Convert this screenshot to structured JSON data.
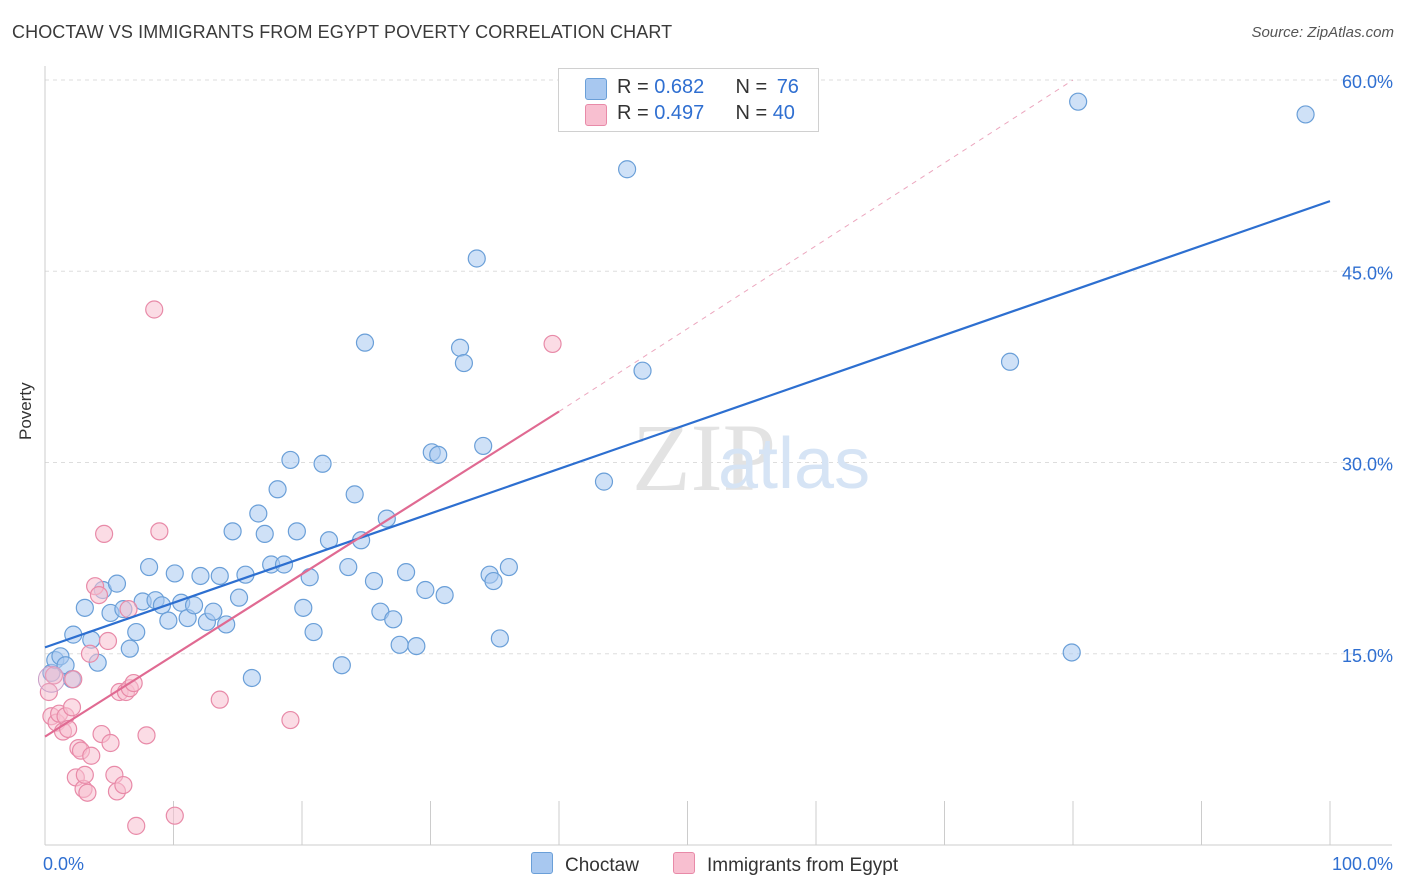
{
  "title": "CHOCTAW VS IMMIGRANTS FROM EGYPT POVERTY CORRELATION CHART",
  "source": "Source: ZipAtlas.com",
  "watermark": {
    "zip": "ZIP",
    "atlas": "atlas"
  },
  "legend": {
    "rows": [
      {
        "r_label": "R = ",
        "r_value": "0.682",
        "n_label": "N = ",
        "n_value": "76",
        "color": "#a8c8f0",
        "border": "#6a9fd8"
      },
      {
        "r_label": "R = ",
        "r_value": "0.497",
        "n_label": "N = ",
        "n_value": "40",
        "color": "#f8bfd0",
        "border": "#e88aa8"
      }
    ]
  },
  "bottom_legend": [
    {
      "label": "Choctaw",
      "color": "#a8c8f0",
      "border": "#6a9fd8"
    },
    {
      "label": "Immigrants from Egypt",
      "color": "#f8bfd0",
      "border": "#e88aa8"
    }
  ],
  "chart_data": {
    "type": "scatter",
    "xlabel": "",
    "ylabel": "Poverty",
    "xlim": [
      0,
      100
    ],
    "ylim": [
      0,
      60
    ],
    "x_tick_labels": [
      {
        "value": 0,
        "label": "0.0%"
      },
      {
        "value": 100,
        "label": "100.0%"
      }
    ],
    "y_tick_labels": [
      {
        "value": 15,
        "label": "15.0%"
      },
      {
        "value": 30,
        "label": "30.0%"
      },
      {
        "value": 45,
        "label": "45.0%"
      },
      {
        "value": 60,
        "label": "60.0%"
      }
    ],
    "grid": "horizontal dashed",
    "series": [
      {
        "name": "Choctaw",
        "color": "#6a9fd8",
        "fill": "#a8c8f0",
        "trend": {
          "x": [
            0,
            100
          ],
          "y": [
            15.5,
            50.5
          ],
          "color": "#2d6fd0"
        },
        "points": [
          [
            0.5,
            13.5
          ],
          [
            0.8,
            14.5
          ],
          [
            1.2,
            14.8
          ],
          [
            1.6,
            14.1
          ],
          [
            2.1,
            13.0
          ],
          [
            2.2,
            16.5
          ],
          [
            3.1,
            18.6
          ],
          [
            3.6,
            16.1
          ],
          [
            4.1,
            14.3
          ],
          [
            4.5,
            20.0
          ],
          [
            5.1,
            18.2
          ],
          [
            5.6,
            20.5
          ],
          [
            6.1,
            18.5
          ],
          [
            6.6,
            15.4
          ],
          [
            7.1,
            16.7
          ],
          [
            7.6,
            19.1
          ],
          [
            8.1,
            21.8
          ],
          [
            8.6,
            19.2
          ],
          [
            9.1,
            18.8
          ],
          [
            9.6,
            17.6
          ],
          [
            10.1,
            21.3
          ],
          [
            10.6,
            19.0
          ],
          [
            11.1,
            17.8
          ],
          [
            11.6,
            18.8
          ],
          [
            12.1,
            21.1
          ],
          [
            12.6,
            17.5
          ],
          [
            13.1,
            18.3
          ],
          [
            13.6,
            21.1
          ],
          [
            14.1,
            17.3
          ],
          [
            14.6,
            24.6
          ],
          [
            15.1,
            19.4
          ],
          [
            15.6,
            21.2
          ],
          [
            16.1,
            13.1
          ],
          [
            16.6,
            26.0
          ],
          [
            17.1,
            24.4
          ],
          [
            17.6,
            22.0
          ],
          [
            18.1,
            27.9
          ],
          [
            18.6,
            22.0
          ],
          [
            19.1,
            30.2
          ],
          [
            19.6,
            24.6
          ],
          [
            20.1,
            18.6
          ],
          [
            20.6,
            21.0
          ],
          [
            20.9,
            16.7
          ],
          [
            21.6,
            29.9
          ],
          [
            22.1,
            23.9
          ],
          [
            23.1,
            14.1
          ],
          [
            23.6,
            21.8
          ],
          [
            24.1,
            27.5
          ],
          [
            24.6,
            23.9
          ],
          [
            24.9,
            39.4
          ],
          [
            25.6,
            20.7
          ],
          [
            26.1,
            18.3
          ],
          [
            26.6,
            25.6
          ],
          [
            27.1,
            17.7
          ],
          [
            27.6,
            15.7
          ],
          [
            28.1,
            21.4
          ],
          [
            28.9,
            15.6
          ],
          [
            29.6,
            20.0
          ],
          [
            30.1,
            30.8
          ],
          [
            30.6,
            30.6
          ],
          [
            31.1,
            19.6
          ],
          [
            32.3,
            39.0
          ],
          [
            32.6,
            37.8
          ],
          [
            33.6,
            46.0
          ],
          [
            34.1,
            31.3
          ],
          [
            34.6,
            21.2
          ],
          [
            34.9,
            20.7
          ],
          [
            35.4,
            16.2
          ],
          [
            36.1,
            21.8
          ],
          [
            43.5,
            28.5
          ],
          [
            45.3,
            53.0
          ],
          [
            46.5,
            37.2
          ],
          [
            75.1,
            37.9
          ],
          [
            79.9,
            15.1
          ],
          [
            80.4,
            58.3
          ],
          [
            98.1,
            57.3
          ]
        ]
      },
      {
        "name": "Immigrants from Egypt",
        "color": "#e88aa8",
        "fill": "#f8bfd0",
        "trend": {
          "x": [
            0,
            40
          ],
          "y": [
            8.5,
            34.0
          ],
          "color": "#e06a92",
          "dashed_extension_to": [
            80,
            60
          ]
        },
        "points": [
          [
            0.3,
            12.0
          ],
          [
            0.5,
            10.1
          ],
          [
            0.7,
            13.3
          ],
          [
            0.9,
            9.6
          ],
          [
            1.1,
            10.3
          ],
          [
            1.4,
            8.9
          ],
          [
            1.6,
            10.1
          ],
          [
            1.8,
            9.1
          ],
          [
            2.1,
            10.8
          ],
          [
            2.2,
            13.0
          ],
          [
            2.4,
            5.3
          ],
          [
            2.6,
            7.6
          ],
          [
            2.8,
            7.4
          ],
          [
            3.0,
            4.4
          ],
          [
            3.1,
            5.5
          ],
          [
            3.3,
            4.1
          ],
          [
            3.5,
            15.0
          ],
          [
            3.6,
            7.0
          ],
          [
            3.9,
            20.3
          ],
          [
            4.2,
            19.6
          ],
          [
            4.4,
            8.7
          ],
          [
            4.6,
            24.4
          ],
          [
            4.9,
            16.0
          ],
          [
            5.1,
            8.0
          ],
          [
            5.4,
            5.5
          ],
          [
            5.6,
            4.2
          ],
          [
            5.8,
            12.0
          ],
          [
            6.1,
            4.7
          ],
          [
            6.3,
            12.0
          ],
          [
            6.5,
            18.5
          ],
          [
            6.6,
            12.3
          ],
          [
            6.9,
            12.7
          ],
          [
            7.1,
            1.5
          ],
          [
            7.9,
            8.6
          ],
          [
            8.5,
            42.0
          ],
          [
            8.9,
            24.6
          ],
          [
            10.1,
            2.3
          ],
          [
            13.6,
            11.4
          ],
          [
            19.1,
            9.8
          ],
          [
            39.5,
            39.3
          ]
        ]
      }
    ]
  }
}
